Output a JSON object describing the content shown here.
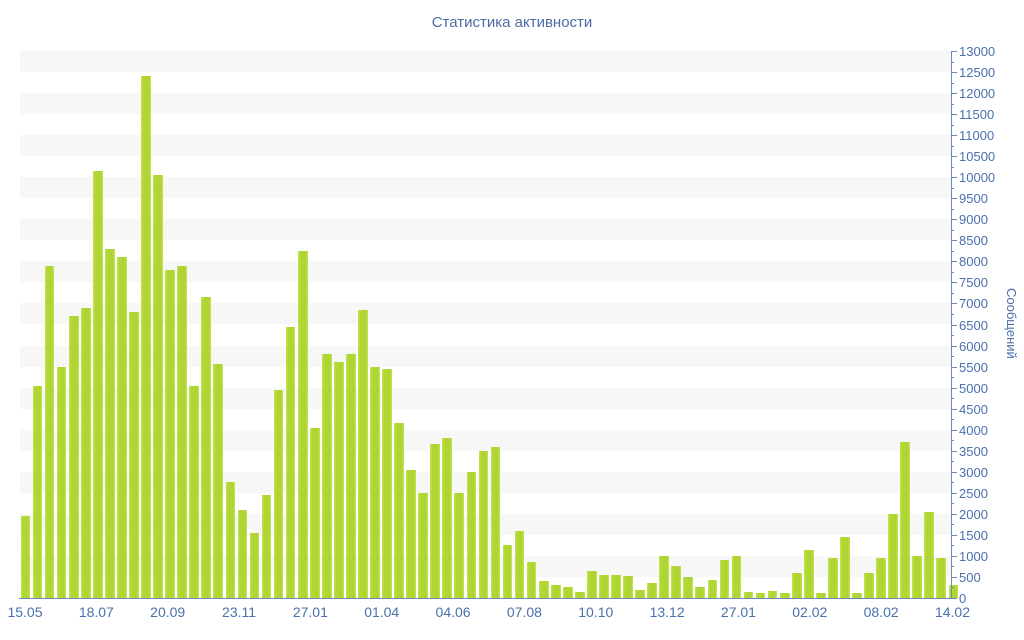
{
  "title": "Статистика активности",
  "y_axis": {
    "label": "Сообщений",
    "min": 0,
    "max": 13000,
    "step": 500,
    "minor_step": 250
  },
  "x_axis": {
    "labels": [
      "15.05",
      "18.07",
      "20.09",
      "23.11",
      "27.01",
      "01.04",
      "04.06",
      "07.08",
      "10.10",
      "13.12",
      "27.01",
      "02.02",
      "08.02",
      "14.02"
    ]
  },
  "colors": {
    "bar": "#b0d733",
    "bar_edge": "#c6e258",
    "band": "#f7f7f7",
    "axis_line": "#7088b8",
    "tick_text": "#4a70ad",
    "title_text": "#4a6ba6",
    "background": "#ffffff"
  },
  "chart_data": {
    "type": "bar",
    "title": "Статистика активности",
    "xlabel": "",
    "ylabel": "Сообщений",
    "ylim": [
      0,
      13000
    ],
    "y_tick_step": 500,
    "grid": "horizontal-bands-every-500",
    "legend": "none",
    "x_tick_labels": [
      "15.05",
      "18.07",
      "20.09",
      "23.11",
      "27.01",
      "01.04",
      "04.06",
      "07.08",
      "10.10",
      "13.12",
      "27.01",
      "02.02",
      "08.02",
      "14.02"
    ],
    "values": [
      1950,
      5050,
      7900,
      5500,
      6700,
      6900,
      10150,
      8300,
      8100,
      6800,
      12400,
      10050,
      7800,
      7900,
      5050,
      7150,
      5550,
      2750,
      2100,
      1550,
      2450,
      4950,
      6450,
      8250,
      4050,
      5800,
      5600,
      5800,
      6850,
      5500,
      5450,
      4150,
      3050,
      2500,
      3650,
      3800,
      2500,
      3000,
      3500,
      3600,
      1250,
      1600,
      850,
      400,
      300,
      250,
      150,
      650,
      550,
      550,
      530,
      200,
      350,
      1000,
      750,
      500,
      270,
      430,
      900,
      1000,
      150,
      120,
      160,
      130,
      600,
      1150,
      110,
      950,
      1450,
      130,
      600,
      950,
      2000,
      3700,
      1000,
      2050,
      950,
      300
    ]
  }
}
